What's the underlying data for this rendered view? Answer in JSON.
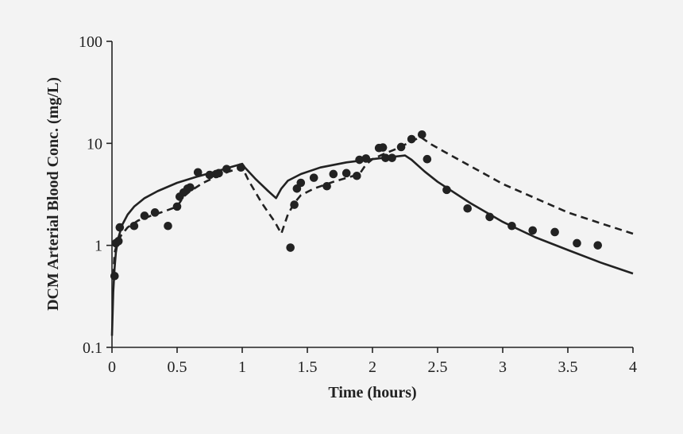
{
  "chart_data": {
    "type": "scatter",
    "title": "",
    "xlabel": "Time (hours)",
    "ylabel": "DCM Arterial Blood Conc. (mg/L)",
    "xlim": [
      0,
      4
    ],
    "ylim": [
      0.1,
      100
    ],
    "yscale": "log",
    "grid": false,
    "background": "#f3f3f3",
    "ink": "#222222",
    "xticks": [
      0,
      0.5,
      1,
      1.5,
      2,
      2.5,
      3,
      3.5,
      4
    ],
    "xtick_labels": [
      "0",
      "0.5",
      "1",
      "1.5",
      "2",
      "2.5",
      "3",
      "3.5",
      "4"
    ],
    "yticks": [
      0.1,
      1,
      10,
      100
    ],
    "ytick_labels": [
      "0.1",
      "1",
      "10",
      "100"
    ],
    "series": [
      {
        "name": "model-solid",
        "style": "solid",
        "points": [
          [
            0,
            0.13
          ],
          [
            0.01,
            0.35
          ],
          [
            0.02,
            0.6
          ],
          [
            0.03,
            0.85
          ],
          [
            0.05,
            1.2
          ],
          [
            0.08,
            1.6
          ],
          [
            0.12,
            2.0
          ],
          [
            0.17,
            2.4
          ],
          [
            0.25,
            2.9
          ],
          [
            0.35,
            3.4
          ],
          [
            0.5,
            4.1
          ],
          [
            0.65,
            4.7
          ],
          [
            0.8,
            5.3
          ],
          [
            0.9,
            5.8
          ],
          [
            1.0,
            6.3
          ],
          [
            1.02,
            5.8
          ],
          [
            1.1,
            4.5
          ],
          [
            1.2,
            3.4
          ],
          [
            1.26,
            2.9
          ],
          [
            1.3,
            3.6
          ],
          [
            1.35,
            4.3
          ],
          [
            1.45,
            5.0
          ],
          [
            1.6,
            5.8
          ],
          [
            1.8,
            6.5
          ],
          [
            2.0,
            7.0
          ],
          [
            2.25,
            7.6
          ],
          [
            2.3,
            6.9
          ],
          [
            2.4,
            5.3
          ],
          [
            2.5,
            4.2
          ],
          [
            2.75,
            2.6
          ],
          [
            3.0,
            1.7
          ],
          [
            3.25,
            1.2
          ],
          [
            3.5,
            0.9
          ],
          [
            3.75,
            0.68
          ],
          [
            4.0,
            0.53
          ]
        ]
      },
      {
        "name": "model-dashed",
        "style": "dashed",
        "points": [
          [
            0.01,
            0.5
          ],
          [
            0.02,
            0.85
          ],
          [
            0.04,
            1.05
          ],
          [
            0.07,
            1.25
          ],
          [
            0.12,
            1.5
          ],
          [
            0.2,
            1.75
          ],
          [
            0.3,
            1.95
          ],
          [
            0.4,
            2.15
          ],
          [
            0.5,
            2.4
          ],
          [
            0.55,
            3.0
          ],
          [
            0.6,
            3.4
          ],
          [
            0.7,
            4.1
          ],
          [
            0.8,
            4.7
          ],
          [
            0.9,
            5.3
          ],
          [
            1.0,
            5.8
          ],
          [
            1.05,
            4.3
          ],
          [
            1.15,
            2.6
          ],
          [
            1.25,
            1.7
          ],
          [
            1.3,
            1.3
          ],
          [
            1.35,
            2.0
          ],
          [
            1.4,
            2.6
          ],
          [
            1.45,
            3.1
          ],
          [
            1.55,
            3.6
          ],
          [
            1.7,
            4.2
          ],
          [
            1.9,
            5.0
          ],
          [
            1.95,
            6.2
          ],
          [
            2.0,
            7.0
          ],
          [
            2.1,
            8.0
          ],
          [
            2.2,
            9.0
          ],
          [
            2.3,
            10.5
          ],
          [
            2.37,
            11.5
          ],
          [
            2.45,
            9.8
          ],
          [
            2.55,
            8.3
          ],
          [
            2.75,
            6.0
          ],
          [
            3.0,
            4.0
          ],
          [
            3.25,
            2.9
          ],
          [
            3.5,
            2.1
          ],
          [
            3.75,
            1.65
          ],
          [
            4.0,
            1.3
          ]
        ]
      },
      {
        "name": "observed",
        "style": "markers",
        "points": [
          [
            0.02,
            0.5
          ],
          [
            0.03,
            1.05
          ],
          [
            0.05,
            1.1
          ],
          [
            0.06,
            1.5
          ],
          [
            0.17,
            1.55
          ],
          [
            0.25,
            1.95
          ],
          [
            0.33,
            2.1
          ],
          [
            0.43,
            1.55
          ],
          [
            0.5,
            2.4
          ],
          [
            0.52,
            3.0
          ],
          [
            0.55,
            3.3
          ],
          [
            0.58,
            3.6
          ],
          [
            0.6,
            3.7
          ],
          [
            0.66,
            5.2
          ],
          [
            0.75,
            4.9
          ],
          [
            0.8,
            5.0
          ],
          [
            0.82,
            5.1
          ],
          [
            0.88,
            5.6
          ],
          [
            0.99,
            5.8
          ],
          [
            1.37,
            0.95
          ],
          [
            1.4,
            2.5
          ],
          [
            1.42,
            3.6
          ],
          [
            1.45,
            4.1
          ],
          [
            1.55,
            4.6
          ],
          [
            1.65,
            3.8
          ],
          [
            1.7,
            5.0
          ],
          [
            1.8,
            5.1
          ],
          [
            1.88,
            4.8
          ],
          [
            1.9,
            6.9
          ],
          [
            1.95,
            7.1
          ],
          [
            2.05,
            9.0
          ],
          [
            2.08,
            9.1
          ],
          [
            2.1,
            7.2
          ],
          [
            2.15,
            7.2
          ],
          [
            2.22,
            9.2
          ],
          [
            2.3,
            11.0
          ],
          [
            2.38,
            12.2
          ],
          [
            2.42,
            7.0
          ],
          [
            2.57,
            3.5
          ],
          [
            2.73,
            2.3
          ],
          [
            2.9,
            1.9
          ],
          [
            3.07,
            1.55
          ],
          [
            3.23,
            1.4
          ],
          [
            3.4,
            1.35
          ],
          [
            3.57,
            1.05
          ],
          [
            3.73,
            1.0
          ]
        ]
      }
    ]
  }
}
